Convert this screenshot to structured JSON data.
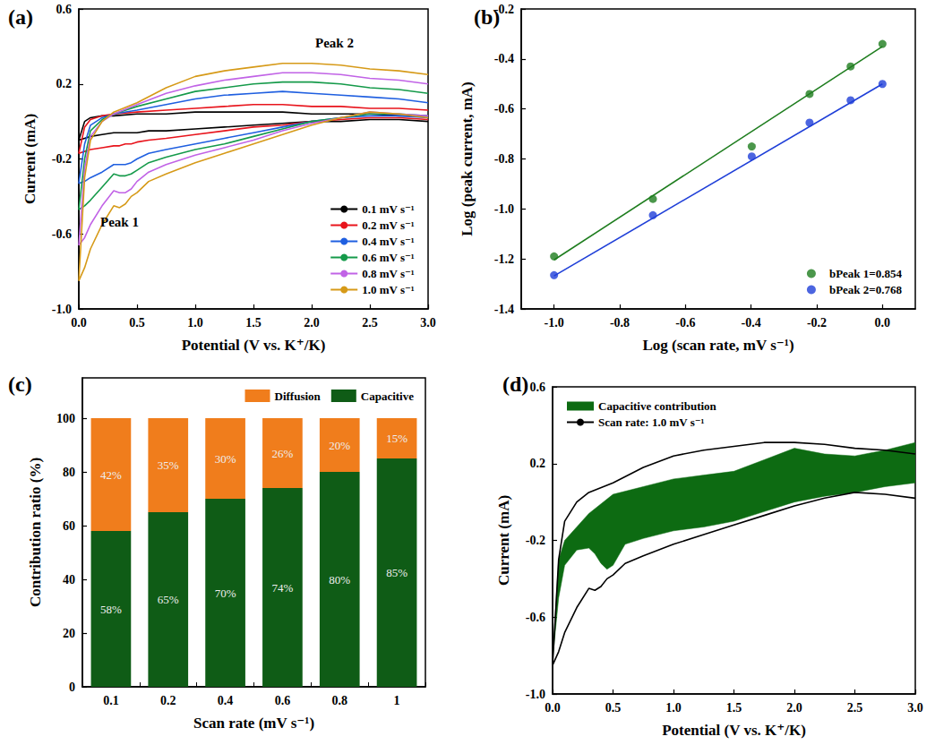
{
  "chart_data": [
    {
      "type": "line",
      "label": "(a)",
      "x_label": "Potential (V vs. K⁺/K)",
      "y_label": "Current (mA)",
      "annotations": [
        "Peak 1",
        "Peak 2"
      ],
      "xlim": [
        0,
        3
      ],
      "ylim": [
        -1,
        0.6
      ],
      "xticks": [
        {
          "value": 0,
          "label": "0.0"
        },
        0.5,
        {
          "value": 1,
          "label": "1.0"
        },
        1.5,
        {
          "value": 2,
          "label": "2.0"
        },
        2.5,
        {
          "value": 3,
          "label": "3.0"
        }
      ],
      "yticks": [
        {
          "value": -1,
          "label": "-1.0"
        },
        -0.6,
        -0.2,
        0.2,
        0.6
      ],
      "grid": false,
      "legend": "lower right",
      "line_style": "solid",
      "marker": "none",
      "x": [
        3,
        2.75,
        2.5,
        2.25,
        2,
        1.75,
        1.5,
        1.25,
        1,
        0.75,
        0.6,
        0.5,
        0.45,
        0.4,
        0.35,
        0.3,
        0.2,
        0.1,
        0.05,
        0,
        0.05,
        0.1,
        0.2,
        0.3,
        0.5,
        0.75,
        1,
        1.25,
        1.5,
        1.75,
        2,
        2.25,
        2.5,
        2.75,
        3
      ],
      "series": [
        {
          "name": "0.1 mV s⁻¹",
          "color": "#000000",
          "values": [
            0.0,
            0.01,
            0.01,
            0.0,
            0.0,
            -0.01,
            -0.02,
            -0.03,
            -0.04,
            -0.05,
            -0.05,
            -0.06,
            -0.06,
            -0.06,
            -0.06,
            -0.06,
            -0.07,
            -0.08,
            -0.09,
            -0.1,
            0.0,
            0.02,
            0.03,
            0.03,
            0.04,
            0.04,
            0.05,
            0.05,
            0.05,
            0.05,
            0.04,
            0.04,
            0.04,
            0.03,
            0.03
          ]
        },
        {
          "name": "0.2 mV s⁻¹",
          "color": "#e8141c",
          "values": [
            0.01,
            0.02,
            0.02,
            0.01,
            0.0,
            -0.02,
            -0.03,
            -0.05,
            -0.07,
            -0.09,
            -0.1,
            -0.11,
            -0.12,
            -0.12,
            -0.13,
            -0.13,
            -0.14,
            -0.15,
            -0.16,
            -0.17,
            -0.03,
            0.01,
            0.03,
            0.04,
            0.05,
            0.06,
            0.07,
            0.08,
            0.09,
            0.09,
            0.08,
            0.08,
            0.07,
            0.07,
            0.06
          ]
        },
        {
          "name": "0.4 mV s⁻¹",
          "color": "#1f5fe0",
          "values": [
            0.02,
            0.03,
            0.03,
            0.02,
            0.0,
            -0.03,
            -0.06,
            -0.09,
            -0.12,
            -0.15,
            -0.17,
            -0.2,
            -0.22,
            -0.23,
            -0.23,
            -0.23,
            -0.27,
            -0.3,
            -0.32,
            -0.33,
            -0.12,
            -0.02,
            0.02,
            0.04,
            0.06,
            0.09,
            0.12,
            0.14,
            0.15,
            0.16,
            0.15,
            0.14,
            0.13,
            0.12,
            0.1
          ]
        },
        {
          "name": "0.6 mV s⁻¹",
          "color": "#159a4a",
          "values": [
            0.03,
            0.04,
            0.04,
            0.02,
            0.0,
            -0.04,
            -0.08,
            -0.12,
            -0.15,
            -0.19,
            -0.22,
            -0.26,
            -0.28,
            -0.29,
            -0.29,
            -0.28,
            -0.35,
            -0.42,
            -0.45,
            -0.47,
            -0.2,
            -0.05,
            0.01,
            0.04,
            0.08,
            0.12,
            0.16,
            0.18,
            0.2,
            0.21,
            0.21,
            0.2,
            0.18,
            0.17,
            0.15
          ]
        },
        {
          "name": "0.8 mV s⁻¹",
          "color": "#c163e6",
          "values": [
            0.03,
            0.04,
            0.05,
            0.02,
            -0.01,
            -0.05,
            -0.1,
            -0.14,
            -0.18,
            -0.23,
            -0.27,
            -0.32,
            -0.36,
            -0.38,
            -0.38,
            -0.37,
            -0.45,
            -0.55,
            -0.62,
            -0.66,
            -0.25,
            -0.08,
            0.0,
            0.04,
            0.09,
            0.15,
            0.19,
            0.22,
            0.24,
            0.26,
            0.26,
            0.25,
            0.23,
            0.22,
            0.2
          ]
        },
        {
          "name": "1.0 mV s⁻¹",
          "color": "#d69a18",
          "values": [
            0.02,
            0.04,
            0.05,
            0.02,
            -0.02,
            -0.07,
            -0.12,
            -0.17,
            -0.22,
            -0.28,
            -0.32,
            -0.38,
            -0.4,
            -0.44,
            -0.46,
            -0.45,
            -0.55,
            -0.68,
            -0.78,
            -0.85,
            -0.3,
            -0.1,
            0.0,
            0.05,
            0.1,
            0.18,
            0.24,
            0.27,
            0.29,
            0.31,
            0.31,
            0.3,
            0.28,
            0.27,
            0.25
          ]
        }
      ]
    },
    {
      "type": "scatter",
      "label": "(b)",
      "x_label": "Log (scan rate, mV s⁻¹)",
      "y_label": "Log (peak current, mA)",
      "xlim": [
        -1.1,
        0.1
      ],
      "ylim": [
        -1.4,
        -0.2
      ],
      "xticks": [
        {
          "value": -1,
          "label": "-1.0"
        },
        -0.8,
        -0.6,
        -0.4,
        -0.2,
        {
          "value": 0,
          "label": "0.0"
        }
      ],
      "yticks": [
        -1.4,
        -1.2,
        {
          "value": -1,
          "label": "-1.0"
        },
        -0.8,
        -0.6,
        -0.4,
        -0.2
      ],
      "grid": false,
      "legend": "lower right",
      "x": [
        -1,
        -0.699,
        -0.398,
        -0.222,
        -0.097,
        0
      ],
      "series": [
        {
          "name": "bPeak 1=0.854",
          "color": "#1e7d1e",
          "marker": "circle",
          "values": [
            -1.19,
            -0.96,
            -0.75,
            -0.54,
            -0.43,
            -0.34
          ]
        },
        {
          "name": "bPeak 2=0.768",
          "color": "#1f3fd8",
          "marker": "circle",
          "values": [
            -1.265,
            -1.025,
            -0.79,
            -0.655,
            -0.565,
            -0.5
          ]
        },
        {
          "type": "line",
          "color": "#1e7d1e",
          "line_style": "solid",
          "x": [
            -1,
            0
          ],
          "values": [
            -1.204,
            -0.35
          ]
        },
        {
          "type": "line",
          "color": "#1f3fd8",
          "line_style": "solid",
          "x": [
            -1,
            0
          ],
          "values": [
            -1.268,
            -0.5
          ]
        }
      ]
    },
    {
      "type": "bar",
      "label": "(c)",
      "x_label": "Scan rate (mV s⁻¹)",
      "y_label": "Contribution ratio (%)",
      "categories": [
        "0.1",
        "0.2",
        "0.4",
        "0.6",
        "0.8",
        "1"
      ],
      "ylim": [
        0,
        115
      ],
      "yticks": [
        0,
        20,
        40,
        60,
        80,
        100
      ],
      "grid": false,
      "legend": "upper right",
      "stacked": true,
      "data_labels": true,
      "series": [
        {
          "name": "Diffusion",
          "color": "#f07d1c",
          "values": [
            42,
            35,
            30,
            26,
            20,
            15
          ],
          "value_labels": [
            "42%",
            "35%",
            "30%",
            "26%",
            "20%",
            "15%"
          ]
        },
        {
          "name": "Capacitive",
          "color": "#0f5c16",
          "values": [
            58,
            65,
            70,
            74,
            80,
            85
          ],
          "value_labels": [
            "58%",
            "65%",
            "70%",
            "74%",
            "80%",
            "85%"
          ]
        }
      ]
    },
    {
      "type": "line",
      "label": "(d)",
      "x_label": "Potential (V vs. K⁺/K)",
      "y_label": "Current (mA)",
      "xlim": [
        0,
        3
      ],
      "ylim": [
        -1,
        0.6
      ],
      "xticks": [
        {
          "value": 0,
          "label": "0.0"
        },
        0.5,
        {
          "value": 1,
          "label": "1.0"
        },
        1.5,
        {
          "value": 2,
          "label": "2.0"
        },
        2.5,
        {
          "value": 3,
          "label": "3.0"
        }
      ],
      "yticks": [
        {
          "value": -1,
          "label": "-1.0"
        },
        -0.6,
        -0.2,
        0.2,
        0.6
      ],
      "grid": false,
      "legend": "upper left",
      "x": [
        3,
        2.75,
        2.5,
        2.25,
        2,
        1.75,
        1.5,
        1.25,
        1,
        0.75,
        0.6,
        0.5,
        0.45,
        0.4,
        0.35,
        0.3,
        0.2,
        0.1,
        0.05,
        0,
        0.05,
        0.1,
        0.2,
        0.3,
        0.5,
        0.75,
        1,
        1.25,
        1.5,
        1.75,
        2,
        2.25,
        2.5,
        2.75,
        3
      ],
      "series": [
        {
          "name": "Capacitive contribution",
          "type": "area",
          "color": "#0d6b12",
          "values": [
            0.1,
            0.08,
            0.05,
            0.03,
            0.0,
            -0.05,
            -0.1,
            -0.13,
            -0.15,
            -0.19,
            -0.22,
            -0.33,
            -0.35,
            -0.32,
            -0.27,
            -0.24,
            -0.25,
            -0.33,
            -0.5,
            -0.82,
            -0.3,
            -0.2,
            -0.13,
            -0.06,
            0.04,
            0.08,
            0.12,
            0.14,
            0.16,
            0.22,
            0.28,
            0.25,
            0.24,
            0.27,
            0.31
          ]
        },
        {
          "name": "Scan rate: 1.0 mV s⁻¹",
          "type": "line",
          "color": "#000000",
          "line_style": "solid",
          "values": [
            0.02,
            0.04,
            0.05,
            0.02,
            -0.02,
            -0.07,
            -0.12,
            -0.17,
            -0.22,
            -0.28,
            -0.32,
            -0.38,
            -0.4,
            -0.44,
            -0.46,
            -0.45,
            -0.55,
            -0.68,
            -0.78,
            -0.85,
            -0.3,
            -0.1,
            0.0,
            0.05,
            0.1,
            0.18,
            0.24,
            0.27,
            0.29,
            0.31,
            0.31,
            0.3,
            0.28,
            0.27,
            0.25
          ]
        }
      ]
    }
  ]
}
